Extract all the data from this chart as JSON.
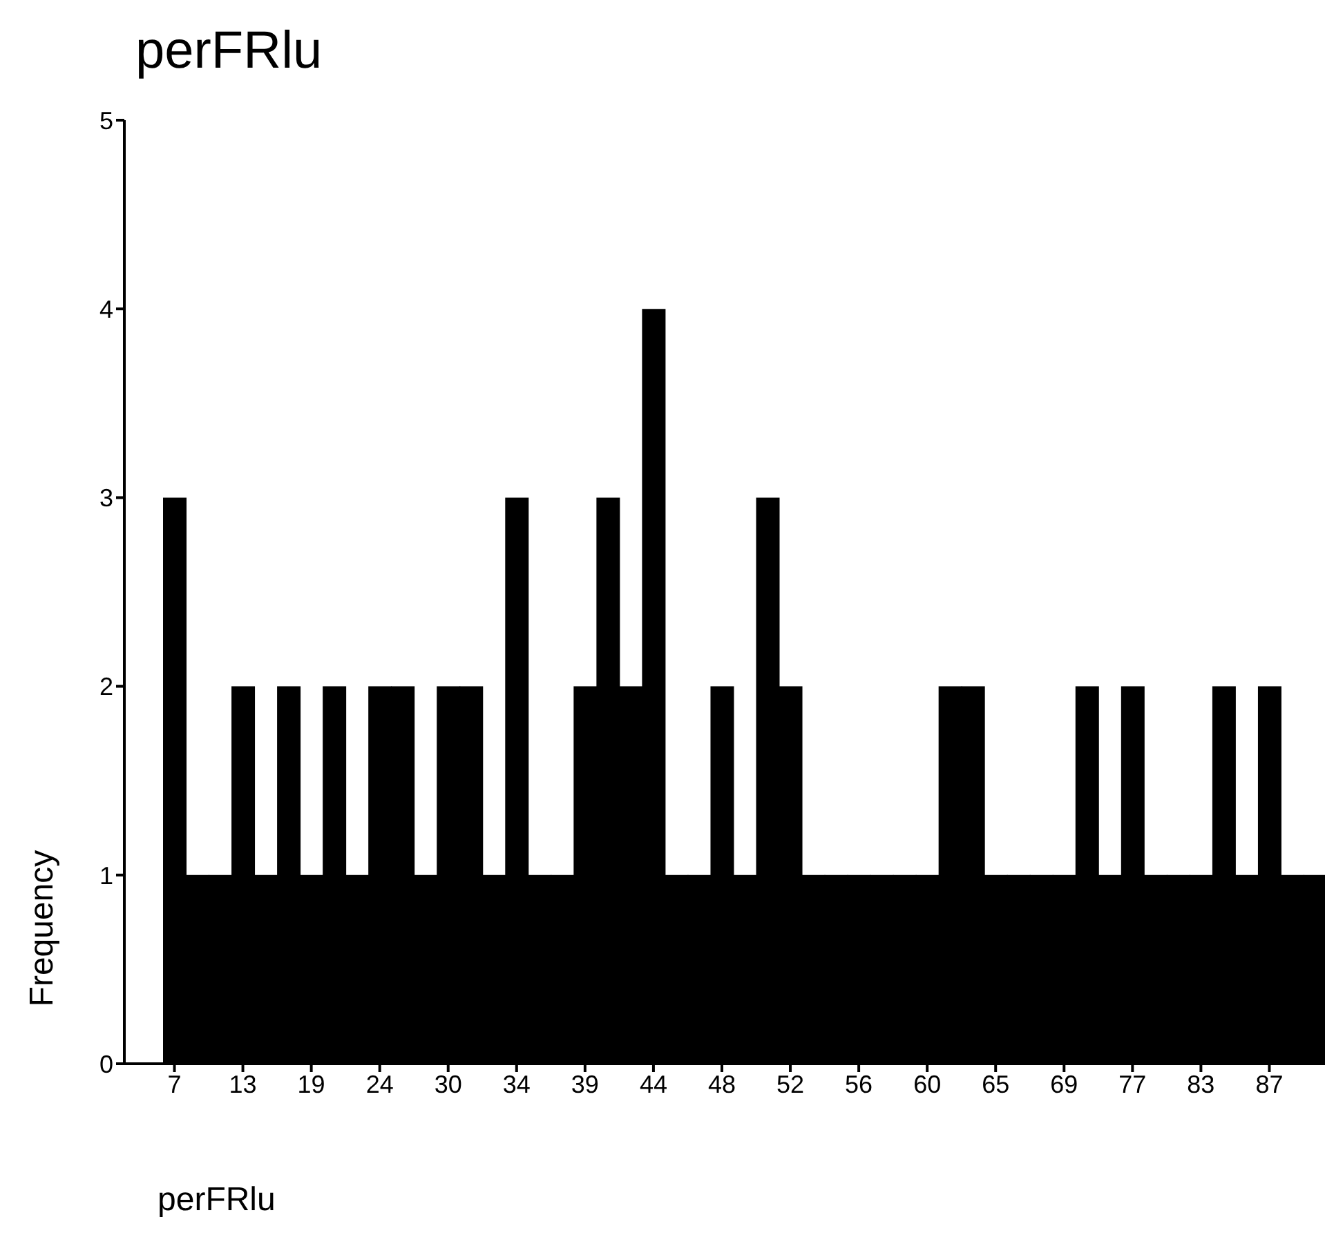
{
  "chart_data": {
    "type": "bar",
    "title": "perFRlu",
    "xlabel": "perFRlu",
    "ylabel": "Frequency",
    "categories": [
      "7",
      null,
      null,
      "13",
      null,
      null,
      "19",
      null,
      null,
      "24",
      null,
      null,
      "30",
      null,
      null,
      "34",
      null,
      null,
      "39",
      null,
      null,
      "44",
      null,
      null,
      "48",
      null,
      null,
      "52",
      null,
      null,
      "56",
      null,
      null,
      "60",
      null,
      null,
      "65",
      null,
      null,
      "69",
      null,
      null,
      "77",
      null,
      null,
      "83",
      null,
      null,
      "87",
      null,
      null
    ],
    "values": [
      3,
      1,
      1,
      2,
      1,
      2,
      1,
      2,
      1,
      2,
      2,
      1,
      2,
      2,
      1,
      3,
      1,
      1,
      2,
      3,
      2,
      4,
      1,
      1,
      2,
      1,
      3,
      2,
      1,
      1,
      1,
      1,
      1,
      1,
      2,
      2,
      1,
      1,
      1,
      1,
      2,
      1,
      2,
      1,
      1,
      1,
      2,
      1,
      2,
      1,
      1
    ],
    "color": "#000000",
    "ylim": [
      0,
      5
    ],
    "yticks": [
      0,
      1,
      2,
      3,
      4,
      5
    ],
    "grid": false,
    "legend": false
  }
}
